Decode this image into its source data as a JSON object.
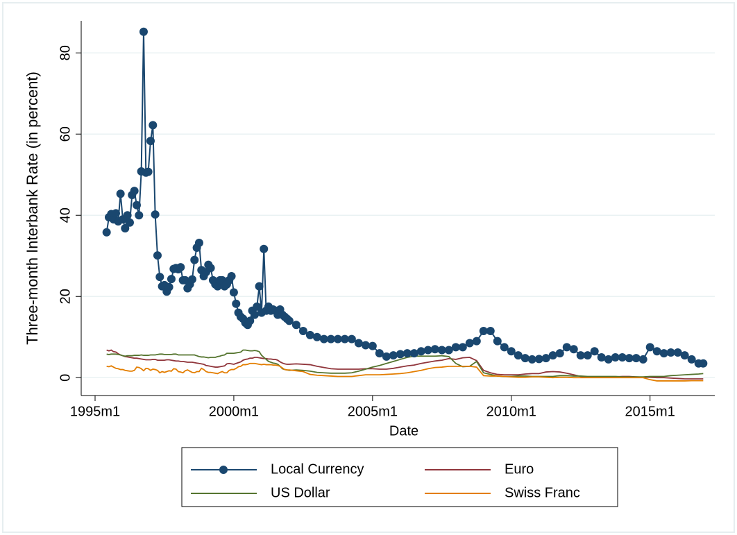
{
  "chart_data": {
    "type": "line",
    "ylabel": "Three-month Interbank Rate (in percent)",
    "xlabel": "Date",
    "x": [
      "1995m6",
      "1995m7",
      "1995m8",
      "1995m9",
      "1995m10",
      "1995m11",
      "1995m12",
      "1996m1",
      "1996m2",
      "1996m3",
      "1996m4",
      "1996m5",
      "1996m6",
      "1996m7",
      "1996m8",
      "1996m9",
      "1996m10",
      "1996m11",
      "1996m12",
      "1997m1",
      "1997m2",
      "1997m3",
      "1997m4",
      "1997m5",
      "1997m6",
      "1997m7",
      "1997m8",
      "1997m9",
      "1997m10",
      "1997m11",
      "1997m12",
      "1998m1",
      "1998m2",
      "1998m3",
      "1998m4",
      "1998m5",
      "1998m6",
      "1998m7",
      "1998m8",
      "1998m9",
      "1998m10",
      "1998m11",
      "1998m12",
      "1999m1",
      "1999m2",
      "1999m3",
      "1999m4",
      "1999m5",
      "1999m6",
      "1999m7",
      "1999m8",
      "1999m9",
      "1999m10",
      "1999m11",
      "1999m12",
      "2000m1",
      "2000m2",
      "2000m3",
      "2000m4",
      "2000m5",
      "2000m6",
      "2000m7",
      "2000m8",
      "2000m9",
      "2000m10",
      "2000m11",
      "2000m12",
      "2001m1",
      "2001m2",
      "2001m3",
      "2001m4",
      "2001m5",
      "2001m6",
      "2001m7",
      "2001m8",
      "2001m9",
      "2001m10",
      "2001m11",
      "2001m12",
      "2002m1",
      "2002m4",
      "2002m7",
      "2002m10",
      "2003m1",
      "2003m4",
      "2003m7",
      "2003m10",
      "2004m1",
      "2004m4",
      "2004m7",
      "2004m10",
      "2005m1",
      "2005m4",
      "2005m7",
      "2005m10",
      "2006m1",
      "2006m4",
      "2006m7",
      "2006m10",
      "2007m1",
      "2007m4",
      "2007m7",
      "2007m10",
      "2008m1",
      "2008m4",
      "2008m7",
      "2008m10",
      "2009m1",
      "2009m4",
      "2009m7",
      "2009m10",
      "2010m1",
      "2010m4",
      "2010m7",
      "2010m10",
      "2011m1",
      "2011m4",
      "2011m7",
      "2011m10",
      "2012m1",
      "2012m4",
      "2012m7",
      "2012m10",
      "2013m1",
      "2013m4",
      "2013m7",
      "2013m10",
      "2014m1",
      "2014m4",
      "2014m7",
      "2014m10",
      "2015m1",
      "2015m4",
      "2015m7",
      "2015m10",
      "2016m1",
      "2016m4",
      "2016m7",
      "2016m10",
      "2016m12"
    ],
    "series": [
      {
        "name": "Local Currency",
        "color": "#1a476f",
        "marker": "circle",
        "values": [
          35.8,
          39.5,
          40.3,
          39,
          40.5,
          38.5,
          45.3,
          39,
          36.8,
          40,
          38.2,
          45,
          46,
          42.5,
          40,
          50.8,
          85.2,
          50.5,
          50.7,
          58.3,
          62.2,
          40.2,
          30.1,
          24.8,
          22.5,
          22.8,
          21.2,
          22.3,
          24.3,
          26.8,
          27,
          26.7,
          27.2,
          24,
          24,
          22,
          23,
          24.2,
          29,
          32,
          33.2,
          26.5,
          25,
          26,
          27.8,
          27,
          24,
          23,
          22.5,
          24,
          24,
          22.5,
          23,
          24,
          25,
          21,
          18.2,
          16,
          15,
          14.5,
          13.5,
          13,
          14,
          16.5,
          15.5,
          17.5,
          22.5,
          16,
          31.7,
          16.5,
          17.5,
          16.5,
          16.8,
          16.5,
          15.5,
          16.8,
          15.5,
          15,
          14.5,
          14,
          13,
          11.5,
          10.5,
          10,
          9.5,
          9.5,
          9.5,
          9.5,
          9.5,
          8.5,
          8,
          7.8,
          6,
          5.2,
          5.5,
          5.8,
          6,
          6,
          6.5,
          6.8,
          7,
          6.8,
          6.8,
          7.5,
          7.5,
          8.5,
          9,
          11.5,
          11.5,
          9,
          7.5,
          6.5,
          5.5,
          4.8,
          4.5,
          4.6,
          4.8,
          5.5,
          6,
          7.5,
          7,
          5.5,
          5.5,
          6.5,
          5,
          4.5,
          5,
          5,
          4.8,
          4.8,
          4.5,
          7.5,
          6.5,
          6,
          6.2,
          6.2,
          5.5,
          4.5,
          3.5,
          3.5
        ]
      },
      {
        "name": "Euro",
        "color": "#90353b",
        "values": [
          6.8,
          6.6,
          6.8,
          6.4,
          6.3,
          5.9,
          5.6,
          5.4,
          5.2,
          5.1,
          5,
          4.9,
          4.8,
          4.8,
          4.7,
          4.6,
          4.5,
          4.4,
          4.4,
          4.4,
          4.5,
          4.5,
          4.3,
          4.3,
          4.3,
          4.3,
          4.4,
          4.4,
          4.3,
          4.2,
          4.1,
          4.1,
          4,
          4,
          3.9,
          3.8,
          3.8,
          3.8,
          3.7,
          3.6,
          3.5,
          3.4,
          3.3,
          3,
          2.9,
          2.8,
          2.7,
          2.6,
          2.6,
          2.7,
          2.8,
          2.9,
          3.4,
          3.5,
          3.4,
          3.3,
          3.5,
          3.7,
          3.9,
          4.3,
          4.5,
          4.6,
          4.8,
          4.8,
          5,
          5,
          4.9,
          4.8,
          4.7,
          4.7,
          4.6,
          4.6,
          4.5,
          4.5,
          4.3,
          3.9,
          3.6,
          3.4,
          3.3,
          3.3,
          3.4,
          3.3,
          3.2,
          2.8,
          2.5,
          2.2,
          2.1,
          2.1,
          2.1,
          2.1,
          2.2,
          2.2,
          2.1,
          2.1,
          2.3,
          2.6,
          2.9,
          3.1,
          3.5,
          3.8,
          4.1,
          4.3,
          4.7,
          4.5,
          4.9,
          5,
          4.2,
          1.8,
          1.2,
          0.8,
          0.7,
          0.7,
          0.7,
          0.9,
          1,
          1,
          1.4,
          1.5,
          1.4,
          1.1,
          0.7,
          0.3,
          0.2,
          0.2,
          0.2,
          0.2,
          0.2,
          0.3,
          0.3,
          0.2,
          0.1,
          0.1,
          0,
          0,
          -0.1,
          -0.2,
          -0.3,
          -0.3,
          -0.3,
          -0.3
        ]
      },
      {
        "name": "US Dollar",
        "color": "#55752f",
        "values": [
          5.8,
          5.7,
          5.8,
          5.8,
          5.8,
          5.7,
          5.6,
          5.4,
          5.3,
          5.4,
          5.4,
          5.4,
          5.5,
          5.5,
          5.5,
          5.6,
          5.5,
          5.5,
          5.5,
          5.6,
          5.6,
          5.6,
          5.7,
          5.8,
          5.8,
          5.7,
          5.7,
          5.7,
          5.7,
          5.8,
          5.8,
          5.6,
          5.6,
          5.6,
          5.6,
          5.6,
          5.6,
          5.6,
          5.6,
          5.4,
          5.2,
          5.1,
          5.1,
          5,
          4.9,
          5,
          5,
          5,
          5.2,
          5.3,
          5.5,
          5.6,
          6,
          6,
          6,
          6,
          6.1,
          6.2,
          6.3,
          6.8,
          6.8,
          6.7,
          6.6,
          6.6,
          6.7,
          6.6,
          6.4,
          5.5,
          5,
          4.5,
          4,
          3.8,
          3.6,
          3.5,
          3.3,
          2.8,
          2.2,
          2,
          1.9,
          1.8,
          1.9,
          1.8,
          1.6,
          1.3,
          1.2,
          1.1,
          1.1,
          1.1,
          1.2,
          1.6,
          2.1,
          2.6,
          3,
          3.5,
          4,
          4.5,
          5,
          5.3,
          5.3,
          5.3,
          5.3,
          5.4,
          5.2,
          3.5,
          2.7,
          2.8,
          4,
          1.2,
          0.8,
          0.4,
          0.3,
          0.3,
          0.4,
          0.4,
          0.3,
          0.3,
          0.3,
          0.3,
          0.5,
          0.5,
          0.4,
          0.4,
          0.3,
          0.3,
          0.3,
          0.3,
          0.3,
          0.2,
          0.2,
          0.2,
          0.2,
          0.3,
          0.3,
          0.3,
          0.5,
          0.6,
          0.7,
          0.8,
          0.9,
          1
        ]
      },
      {
        "name": "Swiss Franc",
        "color": "#e37e00",
        "values": [
          2.8,
          2.7,
          2.9,
          2.6,
          2.3,
          2.2,
          2,
          2,
          1.8,
          1.7,
          1.6,
          1.6,
          1.8,
          2.6,
          2.5,
          2.2,
          1.7,
          2.3,
          2.2,
          1.8,
          2.1,
          2,
          1.8,
          1.2,
          1.5,
          1.3,
          1.5,
          1.7,
          1.6,
          2.2,
          2.1,
          1.5,
          1.4,
          1.2,
          1.7,
          1.9,
          1.6,
          1.3,
          1.2,
          1.5,
          1.5,
          2.3,
          2,
          1.5,
          1.3,
          1.3,
          1.2,
          1.1,
          1,
          1.3,
          1.5,
          1.2,
          1.2,
          1.8,
          2,
          2,
          2.3,
          2.7,
          2.8,
          3.2,
          3.2,
          3.3,
          3.5,
          3.5,
          3.5,
          3.4,
          3.3,
          3.2,
          3.3,
          3.2,
          3.2,
          3.2,
          3.1,
          3.1,
          3,
          2.8,
          2.4,
          2,
          1.9,
          1.9,
          1.7,
          1.5,
          0.8,
          0.6,
          0.5,
          0.4,
          0.3,
          0.3,
          0.3,
          0.5,
          0.7,
          0.7,
          0.7,
          0.8,
          0.9,
          1,
          1.2,
          1.5,
          1.8,
          2.2,
          2.5,
          2.6,
          2.8,
          2.8,
          2.8,
          2.8,
          2.6,
          0.5,
          0.4,
          0.4,
          0.3,
          0.2,
          0.1,
          0.1,
          0.2,
          0.2,
          0.1,
          0,
          0.1,
          0.1,
          0,
          0,
          0,
          0,
          0,
          0,
          0,
          0,
          0,
          0,
          0,
          -0.5,
          -0.8,
          -0.8,
          -0.8,
          -0.8,
          -0.8,
          -0.75,
          -0.75,
          -0.75
        ]
      }
    ],
    "xlim": [
      "1994m7",
      "2017m5"
    ],
    "xticks": [
      "1995m1",
      "2000m1",
      "2005m1",
      "2010m1",
      "2015m1"
    ],
    "ylim": [
      -4.4,
      87.9
    ],
    "yticks": [
      0,
      20,
      40,
      60,
      80
    ],
    "grid": true,
    "legend": "bottom"
  }
}
